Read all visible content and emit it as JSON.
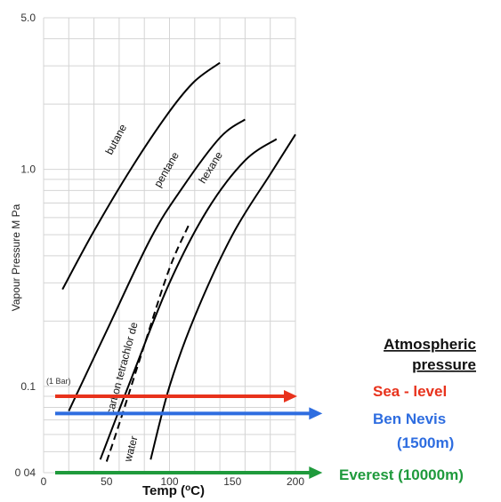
{
  "chart_data": {
    "type": "line",
    "ylabel": "Vapour Pressure  M Pa",
    "xlabel": "Temp (",
    "xlabel_sup": "o",
    "xlabel_suffix": "C)",
    "y_scale": "log",
    "xlim": [
      0,
      200
    ],
    "ylim": [
      0.04,
      5.0
    ],
    "x_ticks": [
      "0",
      "50",
      "100",
      "150",
      "200"
    ],
    "y_ticks": [
      {
        "value": 5.0,
        "label": "5.0"
      },
      {
        "value": 1.0,
        "label": "1.0"
      },
      {
        "value": 0.1,
        "label": "0.1"
      },
      {
        "value": 0.04,
        "label": "0 04"
      }
    ],
    "grid": true,
    "series": [
      {
        "name": "butane",
        "style": "solid",
        "color": "#000000",
        "points": [
          [
            15,
            0.28
          ],
          [
            40,
            0.52
          ],
          [
            70,
            1.02
          ],
          [
            100,
            1.85
          ],
          [
            120,
            2.55
          ],
          [
            140,
            3.1
          ]
        ]
      },
      {
        "name": "pentane",
        "style": "solid",
        "color": "#000000",
        "points": [
          [
            20,
            0.077
          ],
          [
            50,
            0.18
          ],
          [
            85,
            0.48
          ],
          [
            110,
            0.82
          ],
          [
            140,
            1.4
          ],
          [
            160,
            1.7
          ]
        ]
      },
      {
        "name": "carbon tetrachlor de",
        "style": "dashed",
        "color": "#000000",
        "points": [
          [
            50,
            0.045
          ],
          [
            60,
            0.067
          ],
          [
            80,
            0.155
          ],
          [
            100,
            0.35
          ],
          [
            115,
            0.55
          ]
        ]
      },
      {
        "name": "hexane",
        "style": "solid",
        "color": "#000000",
        "points": [
          [
            45,
            0.046
          ],
          [
            70,
            0.11
          ],
          [
            100,
            0.3
          ],
          [
            130,
            0.65
          ],
          [
            160,
            1.1
          ],
          [
            185,
            1.38
          ]
        ]
      },
      {
        "name": "water",
        "style": "solid",
        "color": "#000000",
        "points": [
          [
            85,
            0.046
          ],
          [
            100,
            0.1
          ],
          [
            120,
            0.21
          ],
          [
            150,
            0.5
          ],
          [
            180,
            0.95
          ],
          [
            200,
            1.45
          ]
        ]
      }
    ],
    "annotations": [
      {
        "text": "(1 Bar)",
        "y": 0.1
      }
    ],
    "reference_lines": [
      {
        "label": "Sea - level",
        "y": 0.09,
        "color": "#e8321c",
        "x_end": 200
      },
      {
        "label": "Ben Nevis",
        "sublabel": "(1500m)",
        "y": 0.075,
        "color": "#2e6de0",
        "x_end": 220
      },
      {
        "label": "Everest (10000m)",
        "y": 0.04,
        "color": "#1f9a3c",
        "x_end": 220
      }
    ],
    "legend_title_lines": [
      "Atmospheric",
      "pressure"
    ]
  }
}
